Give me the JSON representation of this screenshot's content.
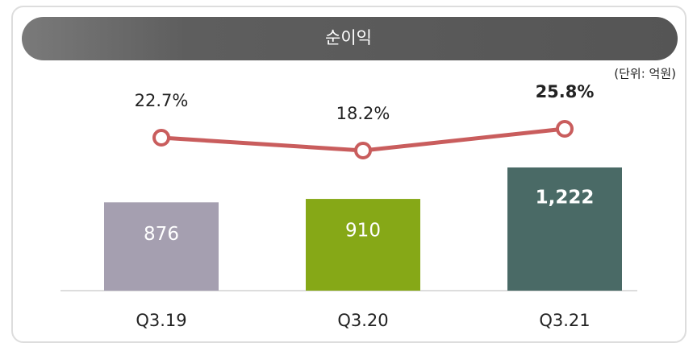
{
  "chart_data": {
    "type": "bar",
    "title": "순이익",
    "unit_note": "(단위: 억원)",
    "categories": [
      "Q3.19",
      "Q3.20",
      "Q3.21"
    ],
    "series": [
      {
        "type": "bar",
        "values": [
          876,
          910,
          1222
        ],
        "value_labels": [
          "876",
          "910",
          "1,222"
        ],
        "colors": [
          "#a59fb0",
          "#86a817",
          "#4a6a66"
        ]
      },
      {
        "type": "line",
        "values": [
          22.7,
          18.2,
          25.8
        ],
        "value_labels": [
          "22.7%",
          "18.2%",
          "25.8%"
        ],
        "color": "#c95d5d"
      }
    ]
  }
}
